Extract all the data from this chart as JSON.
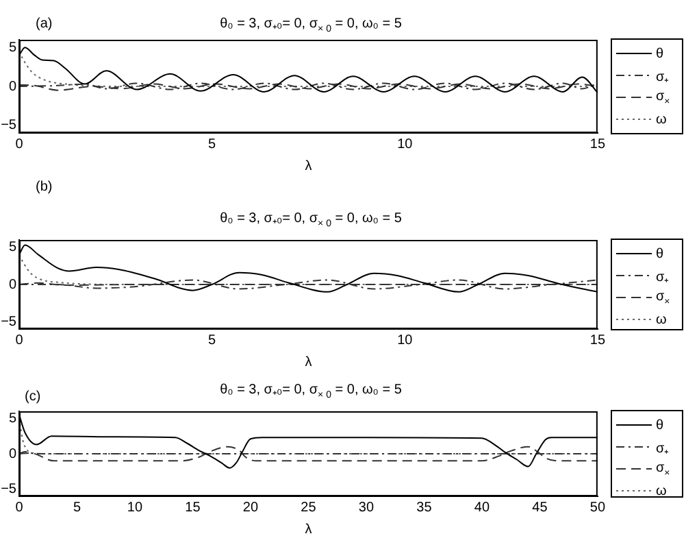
{
  "chart_data": [
    {
      "type": "line",
      "title": "θ₀ = 3,  σ₊₀= 0,  σ$_{× 0}$ = 0,  ω₀ = 5",
      "xlabel": "λ",
      "annotations": [
        "(a)"
      ],
      "xlim": [
        0,
        15
      ],
      "xticks": [
        0,
        5,
        10,
        15
      ],
      "ylim": [
        -6,
        6
      ],
      "yticks": [
        -5,
        0,
        5
      ],
      "grid": false,
      "legend": "right",
      "marker": "none",
      "series": [
        {
          "name": "θ",
          "color": "#000000",
          "line_style": "solid",
          "x": [
            0,
            0.15,
            0.4,
            0.6,
            0.9,
            1.2,
            1.7,
            2.26,
            3.05,
            3.92,
            4.7,
            5.55,
            6.35,
            7.14,
            7.9,
            8.66,
            9.45,
            10.25,
            11.05,
            11.83,
            12.6,
            13.35,
            14.1,
            14.6,
            15
          ],
          "values": [
            4,
            5,
            4,
            3.4,
            3.3,
            2.3,
            0.3,
            2,
            -0.4,
            1.6,
            -0.6,
            1.5,
            -0.7,
            1.4,
            -0.7,
            1.3,
            -0.7,
            1.3,
            -0.7,
            1.3,
            -0.7,
            1.3,
            -0.7,
            1.2,
            -0.8
          ]
        },
        {
          "name": "σ₊",
          "color": "#333333",
          "line_style": "dashdot",
          "x": [
            0,
            1,
            1.7,
            2.26,
            3.05,
            3.92,
            4.7,
            5.55,
            6.35,
            7.14,
            7.9,
            8.66,
            9.45,
            10.25,
            11.05,
            11.83,
            12.6,
            13.35,
            14.1,
            14.6,
            15
          ],
          "values": [
            0,
            0.1,
            0.3,
            -0.3,
            0.4,
            -0.4,
            0.4,
            -0.4,
            0.4,
            -0.4,
            0.4,
            -0.4,
            0.4,
            -0.4,
            0.4,
            -0.4,
            0.4,
            -0.4,
            0.4,
            -0.3,
            0.4
          ]
        },
        {
          "name": "σ$_{×}$",
          "color": "#333333",
          "line_style": "dashed",
          "x": [
            0,
            0.4,
            1,
            1.9,
            2.65,
            3.5,
            4.3,
            5.1,
            5.95,
            6.75,
            7.5,
            8.3,
            9.05,
            9.85,
            10.65,
            11.45,
            12.2,
            13,
            13.75,
            14.5,
            15
          ],
          "values": [
            0.2,
            0.1,
            -0.5,
            0,
            -0.3,
            0.3,
            -0.3,
            0.3,
            -0.3,
            0.3,
            -0.3,
            0.3,
            -0.3,
            0.3,
            -0.3,
            0.3,
            -0.3,
            0.3,
            -0.3,
            0.3,
            0
          ]
        },
        {
          "name": "ω",
          "color": "#666666",
          "line_style": "dotted",
          "x": [
            0,
            0.1,
            0.3,
            0.5,
            0.8,
            1.2,
            1.7,
            2.5,
            15
          ],
          "values": [
            4.5,
            3.5,
            2,
            1.2,
            0.6,
            0.3,
            0.1,
            0,
            0
          ]
        }
      ]
    },
    {
      "type": "line",
      "title": "θ₀ = 3,  σ₊₀= 0,  σ$_{× 0}$ = 0,  ω₀ = 5",
      "xlabel": "λ",
      "annotations": [
        "(b)"
      ],
      "xlim": [
        0,
        15
      ],
      "xticks": [
        0,
        5,
        10,
        15
      ],
      "ylim": [
        -6,
        6
      ],
      "yticks": [
        -5,
        0,
        5
      ],
      "grid": false,
      "legend": "right",
      "marker": "none",
      "series": [
        {
          "name": "θ",
          "color": "#000000",
          "line_style": "solid",
          "x": [
            0,
            0.15,
            0.5,
            1,
            1.3,
            2,
            2.6,
            3.5,
            4.5,
            5,
            5.7,
            6.3,
            7,
            8,
            8.5,
            9.2,
            9.8,
            10.5,
            11.4,
            11.9,
            12.6,
            13.2,
            14,
            15
          ],
          "values": [
            4,
            5.3,
            4,
            2.2,
            1.8,
            2.3,
            2,
            0.8,
            -0.8,
            0,
            1.6,
            1.3,
            0.2,
            -1,
            0,
            1.5,
            1.2,
            0.2,
            -1,
            0,
            1.5,
            1.2,
            0.1,
            -1
          ]
        },
        {
          "name": "σ₊",
          "color": "#333333",
          "line_style": "dashdot",
          "x": [
            0,
            1,
            2,
            3,
            4.5,
            5.7,
            6.9,
            8,
            9.2,
            10.4,
            11.4,
            12.6,
            13.8,
            15
          ],
          "values": [
            0,
            0,
            -0.5,
            -0.3,
            0.6,
            -0.6,
            0,
            0.6,
            -0.6,
            0,
            0.6,
            -0.6,
            0,
            0.6
          ]
        },
        {
          "name": "σ$_{×}$",
          "color": "#333333",
          "line_style": "dashed",
          "x": [
            0,
            0.5,
            1.2,
            3,
            5,
            7,
            9,
            11,
            13,
            15
          ],
          "values": [
            0,
            0.2,
            -0.1,
            0,
            0,
            0,
            0,
            0,
            0,
            0
          ]
        },
        {
          "name": "ω",
          "color": "#666666",
          "line_style": "dotted",
          "x": [
            0,
            0.1,
            0.3,
            0.6,
            1,
            1.5,
            2.5,
            15
          ],
          "values": [
            4,
            3,
            1.5,
            0.6,
            0.3,
            0.1,
            0,
            0
          ]
        }
      ]
    },
    {
      "type": "line",
      "title": "θ₀ = 3,  σ₊₀= 0,  σ$_{× 0}$ = 0,  ω₀ = 5",
      "xlabel": "λ",
      "annotations": [
        "(c)"
      ],
      "xlim": [
        0,
        50
      ],
      "xticks": [
        0,
        5,
        10,
        15,
        20,
        25,
        30,
        35,
        40,
        45,
        50
      ],
      "ylim": [
        -6,
        6
      ],
      "yticks": [
        -5,
        0,
        5
      ],
      "grid": false,
      "legend": "right",
      "marker": "none",
      "series": [
        {
          "name": "θ",
          "color": "#000000",
          "line_style": "solid",
          "x": [
            0,
            0.5,
            1.5,
            2.8,
            8,
            13.5,
            14.5,
            15.5,
            16.5,
            17.5,
            18.2,
            18.8,
            19.3,
            20,
            21,
            30,
            40,
            41,
            42,
            43,
            44,
            44.7,
            45.5,
            46,
            50
          ],
          "values": [
            5.5,
            3,
            1.3,
            2.5,
            2.4,
            2.3,
            1.5,
            0.5,
            -0.3,
            -1.3,
            -2,
            -1.2,
            0.3,
            2.1,
            2.3,
            2.3,
            2.2,
            1.4,
            0.2,
            -0.8,
            -1.8,
            0,
            2,
            2.3,
            2.3
          ]
        },
        {
          "name": "σ₊",
          "color": "#333333",
          "line_style": "dashdot",
          "x": [
            0,
            0.5,
            1,
            2,
            50
          ],
          "values": [
            0,
            0.3,
            0.1,
            0,
            0
          ]
        },
        {
          "name": "σ$_{×}$",
          "color": "#333333",
          "line_style": "dashed",
          "x": [
            0,
            1,
            3,
            14,
            15.5,
            16.5,
            18,
            19,
            19.6,
            20.5,
            40,
            41.5,
            42.5,
            44,
            44.8,
            45.5,
            46.5,
            50
          ],
          "values": [
            0,
            0.1,
            -1,
            -1,
            -0.5,
            0.3,
            1,
            0.5,
            -0.5,
            -1,
            -1,
            -0.3,
            0.4,
            1,
            0.3,
            -0.6,
            -1,
            -1
          ]
        },
        {
          "name": "ω",
          "color": "#666666",
          "line_style": "dotted",
          "x": [
            0,
            0.3,
            0.7,
            1.2,
            2,
            50
          ],
          "values": [
            5,
            2,
            0.5,
            0.1,
            0,
            0
          ]
        }
      ]
    }
  ]
}
